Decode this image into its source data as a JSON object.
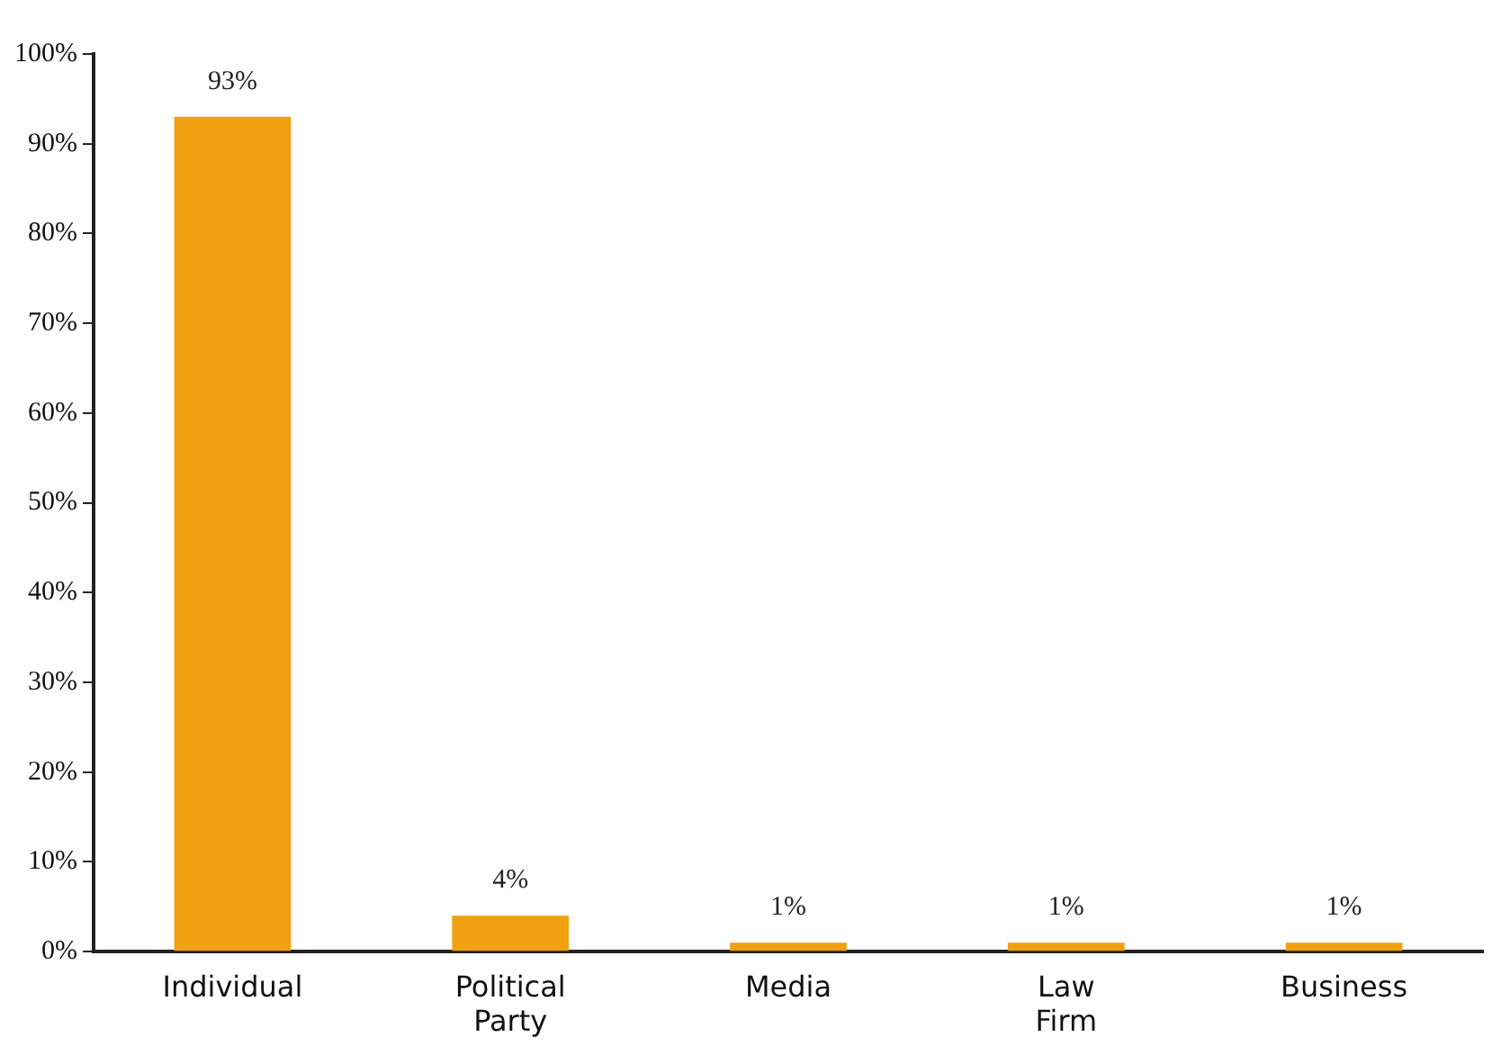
{
  "chart_data": {
    "type": "bar",
    "categories": [
      "Individual",
      "Political Party",
      "Media",
      "Law Firm",
      "Business"
    ],
    "values": [
      93,
      4,
      1,
      1,
      1
    ],
    "value_labels": [
      "93%",
      "4%",
      "1%",
      "1%",
      "1%"
    ],
    "color": "#f0a010",
    "ylim": [
      0,
      100
    ],
    "yticks": [
      {
        "value": 0,
        "label": "0%"
      },
      {
        "value": 10,
        "label": "10%"
      },
      {
        "value": 20,
        "label": "20%"
      },
      {
        "value": 30,
        "label": "30%"
      },
      {
        "value": 40,
        "label": "40%"
      },
      {
        "value": 50,
        "label": "50%"
      },
      {
        "value": 60,
        "label": "60%"
      },
      {
        "value": 70,
        "label": "70%"
      },
      {
        "value": 80,
        "label": "80%"
      },
      {
        "value": 90,
        "label": "90%"
      },
      {
        "value": 100,
        "label": "100%"
      }
    ],
    "grid": false,
    "legend": false
  }
}
